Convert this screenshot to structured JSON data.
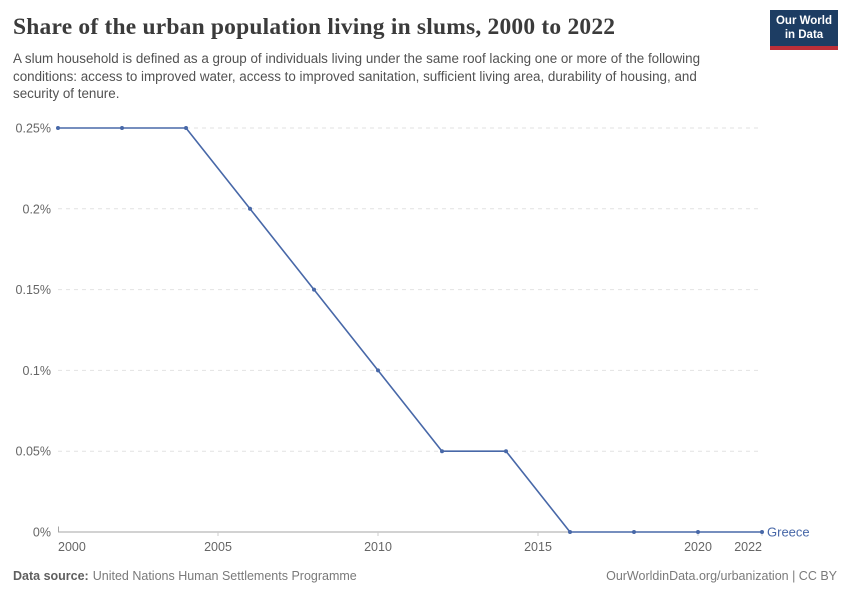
{
  "header": {
    "title": "Share of the urban population living in slums, 2000 to 2022",
    "subtitle": "A slum household is defined as a group of individuals living under the same roof lacking one or more of the following conditions: access to improved water, access to improved sanitation, sufficient living area, durability of housing, and security of tenure."
  },
  "logo": {
    "line1": "Our World",
    "line2": "in Data",
    "background": "#1d3d63",
    "bar_color": "#bc2f38"
  },
  "chart_data": {
    "type": "line",
    "title": "Share of the urban population living in slums, 2000 to 2022",
    "xlabel": "",
    "ylabel": "",
    "unit": "%",
    "x": [
      2000,
      2002,
      2004,
      2006,
      2008,
      2010,
      2012,
      2014,
      2016,
      2018,
      2020,
      2022
    ],
    "series": [
      {
        "name": "Greece",
        "color": "#4868a8",
        "values": [
          0.25,
          0.25,
          0.25,
          0.2,
          0.15,
          0.1,
          0.05,
          0.05,
          0,
          0,
          0,
          0
        ]
      }
    ],
    "xlim": [
      2000,
      2022
    ],
    "ylim": [
      0,
      0.25
    ],
    "xticks": [
      {
        "v": 2000,
        "label": "2000"
      },
      {
        "v": 2005,
        "label": "2005"
      },
      {
        "v": 2010,
        "label": "2010"
      },
      {
        "v": 2015,
        "label": "2015"
      },
      {
        "v": 2020,
        "label": "2020"
      },
      {
        "v": 2022,
        "label": "2022"
      }
    ],
    "yticks": [
      {
        "v": 0,
        "label": "0%"
      },
      {
        "v": 0.05,
        "label": "0.05%"
      },
      {
        "v": 0.1,
        "label": "0.1%"
      },
      {
        "v": 0.15,
        "label": "0.15%"
      },
      {
        "v": 0.2,
        "label": "0.2%"
      },
      {
        "v": 0.25,
        "label": "0.25%"
      }
    ],
    "grid": "horizontal-dashed",
    "legend_position": "end-of-line",
    "markers": true
  },
  "colors": {
    "grid": "#e2e2e2",
    "axis": "#a5a5a5",
    "minor_tick": "#cccccc",
    "tick_text": "#666666"
  },
  "footer": {
    "source_label": "Data source:",
    "source_value": "United Nations Human Settlements Programme",
    "right_text": "OurWorldinData.org/urbanization | CC BY"
  }
}
